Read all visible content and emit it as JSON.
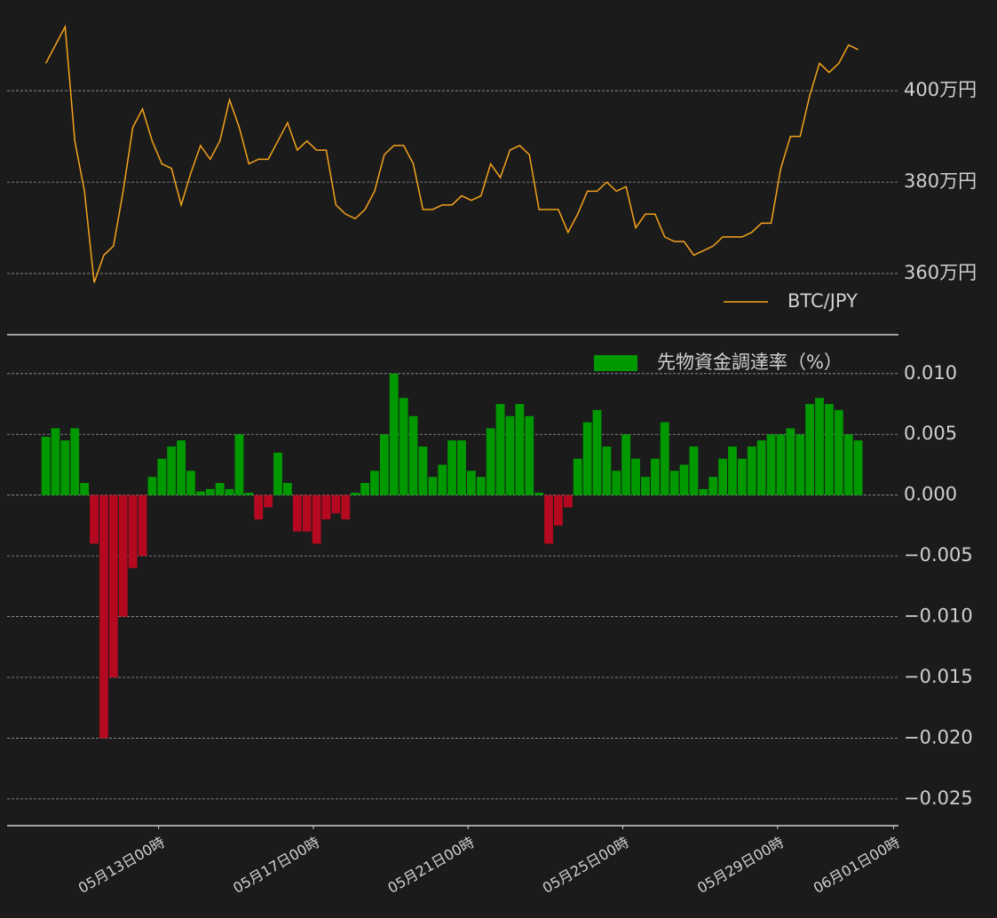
{
  "chart_data": [
    {
      "type": "line",
      "x": [
        "05月10日02時",
        "05月10日08時",
        "05月10日14時",
        "05月10日20時",
        "05月11日02時",
        "05月11日08時",
        "05月11日14時",
        "05月11日20時",
        "05月12日02時",
        "05月12日08時",
        "05月12日14時",
        "05月12日20時",
        "05月13日02時",
        "05月13日08時",
        "05月13日14時",
        "05月13日20時",
        "05月14日02時",
        "05月14日08時",
        "05月14日14時",
        "05月14日20時",
        "05月15日02時",
        "05月15日08時",
        "05月15日14時",
        "05月15日20時",
        "05月16日02時",
        "05月16日08時",
        "05月16日14時",
        "05月16日20時",
        "05月17日02時",
        "05月17日08時",
        "05月17日14時",
        "05月17日20時",
        "05月18日02時",
        "05月18日08時",
        "05月18日14時",
        "05月18日20時",
        "05月19日02時",
        "05月19日08時",
        "05月19日14時",
        "05月19日20時",
        "05月20日02時",
        "05月20日08時",
        "05月20日14時",
        "05月20日20時",
        "05月21日02時",
        "05月21日08時",
        "05月21日14時",
        "05月21日20時",
        "05月22日02時",
        "05月22日08時",
        "05月22日14時",
        "05月22日20時",
        "05月23日02時",
        "05月23日08時",
        "05月23日14時",
        "05月23日20時",
        "05月24日02時",
        "05月24日08時",
        "05月24日14時",
        "05月24日20時",
        "05月25日02時",
        "05月25日08時",
        "05月25日14時",
        "05月25日20時",
        "05月26日02時",
        "05月26日08時",
        "05月26日14時",
        "05月26日20時",
        "05月27日02時",
        "05月27日08時",
        "05月27日14時",
        "05月27日20時",
        "05月28日02時",
        "05月28日08時",
        "05月28日14時",
        "05月28日20時",
        "05月29日02時",
        "05月29日08時",
        "05月29日14時",
        "05月29日20時",
        "05月30日02時",
        "05月30日08時",
        "05月30日14時",
        "05月30日20時",
        "05月31日02時"
      ],
      "series": [
        {
          "name": "BTC/JPY",
          "color": "#f5a31a",
          "values": [
            406,
            410,
            414,
            389,
            378,
            358,
            364,
            366,
            378,
            392,
            396,
            389,
            384,
            383,
            375,
            382,
            388,
            385,
            389,
            398,
            392,
            384,
            385,
            385,
            389,
            393,
            387,
            389,
            387,
            387,
            375,
            373,
            372,
            374,
            378,
            386,
            388,
            388,
            384,
            374,
            374,
            375,
            375,
            377,
            376,
            377,
            384,
            381,
            387,
            388,
            386,
            374,
            374,
            374,
            369,
            373,
            378,
            378,
            380,
            378,
            379,
            370,
            373,
            373,
            368,
            367,
            367,
            364,
            365,
            366,
            368,
            368,
            368,
            369,
            371,
            371,
            383,
            390,
            390,
            399,
            406,
            404,
            406,
            410,
            409
          ]
        }
      ],
      "xlim": [
        "05月09日02時",
        "06月01日03時"
      ],
      "ylim": [
        346.6,
        418.3
      ],
      "yticks": [
        {
          "value": 360,
          "label": "360万円"
        },
        {
          "value": 380,
          "label": "380万円"
        },
        {
          "value": 400,
          "label": "400万円"
        }
      ],
      "grid": true,
      "legend": "lower right"
    },
    {
      "type": "bar",
      "x": [
        "05月10日02時",
        "05月10日08時",
        "05月10日14時",
        "05月10日20時",
        "05月11日02時",
        "05月11日08時",
        "05月11日14時",
        "05月11日20時",
        "05月12日02時",
        "05月12日08時",
        "05月12日14時",
        "05月12日20時",
        "05月13日02時",
        "05月13日08時",
        "05月13日14時",
        "05月13日20時",
        "05月14日02時",
        "05月14日08時",
        "05月14日14時",
        "05月14日20時",
        "05月15日02時",
        "05月15日08時",
        "05月15日14時",
        "05月15日20時",
        "05月16日02時",
        "05月16日08時",
        "05月16日14時",
        "05月16日20時",
        "05月17日02時",
        "05月17日08時",
        "05月17日14時",
        "05月17日20時",
        "05月18日02時",
        "05月18日08時",
        "05月18日14時",
        "05月18日20時",
        "05月19日02時",
        "05月19日08時",
        "05月19日14時",
        "05月19日20時",
        "05月20日02時",
        "05月20日08時",
        "05月20日14時",
        "05月20日20時",
        "05月21日02時",
        "05月21日08時",
        "05月21日14時",
        "05月21日20時",
        "05月22日02時",
        "05月22日08時",
        "05月22日14時",
        "05月22日20時",
        "05月23日02時",
        "05月23日08時",
        "05月23日14時",
        "05月23日20時",
        "05月24日02時",
        "05月24日08時",
        "05月24日14時",
        "05月24日20時",
        "05月25日02時",
        "05月25日08時",
        "05月25日14時",
        "05月25日20時",
        "05月26日02時",
        "05月26日08時",
        "05月26日14時",
        "05月26日20時",
        "05月27日02時",
        "05月27日08時",
        "05月27日14時",
        "05月27日20時",
        "05月28日02時",
        "05月28日08時",
        "05月28日14時",
        "05月28日20時",
        "05月29日02時",
        "05月29日08時",
        "05月29日14時",
        "05月29日20時",
        "05月30日02時",
        "05月30日08時",
        "05月30日14時",
        "05月30日20時",
        "05月31日02時"
      ],
      "series": [
        {
          "name": "先物資金調達率（%）",
          "color": "#009a00",
          "negative_color": "#b5091f",
          "values": [
            0.0048,
            0.0055,
            0.0045,
            0.0055,
            0.001,
            -0.004,
            -0.02,
            -0.015,
            -0.01,
            -0.006,
            -0.005,
            0.0015,
            0.003,
            0.004,
            0.0045,
            0.002,
            0.0003,
            0.0005,
            0.001,
            0.0005,
            0.005,
            0.0002,
            -0.002,
            -0.001,
            0.0035,
            0.001,
            -0.003,
            -0.003,
            -0.004,
            -0.002,
            -0.0015,
            -0.002,
            0.0002,
            0.001,
            0.002,
            0.005,
            0.01,
            0.008,
            0.0065,
            0.004,
            0.0015,
            0.0025,
            0.0045,
            0.0045,
            0.002,
            0.0015,
            0.0055,
            0.0075,
            0.0065,
            0.0075,
            0.0065,
            0.0002,
            -0.004,
            -0.0025,
            -0.001,
            0.003,
            0.006,
            0.007,
            0.004,
            0.002,
            0.005,
            0.003,
            0.0015,
            0.003,
            0.006,
            0.002,
            0.0025,
            0.004,
            0.0005,
            0.0015,
            0.003,
            0.004,
            0.003,
            0.004,
            0.0045,
            0.005,
            0.005,
            0.0055,
            0.005,
            0.0075,
            0.008,
            0.0075,
            0.007,
            0.005,
            0.0045
          ]
        }
      ],
      "xlim": [
        "05月09日02時",
        "06月01日03時"
      ],
      "xticks": [
        "05月13日00時",
        "05月17日00時",
        "05月21日00時",
        "05月25日00時",
        "05月29日00時",
        "06月01日00時"
      ],
      "ylim": [
        -0.0272,
        0.0132
      ],
      "yticks": [
        {
          "value": -0.025,
          "label": "−0.025"
        },
        {
          "value": -0.02,
          "label": "−0.020"
        },
        {
          "value": -0.015,
          "label": "−0.015"
        },
        {
          "value": -0.01,
          "label": "−0.010"
        },
        {
          "value": -0.005,
          "label": "−0.005"
        },
        {
          "value": 0,
          "label": "0.000"
        },
        {
          "value": 0.005,
          "label": "0.005"
        },
        {
          "value": 0.01,
          "label": "0.010"
        }
      ],
      "grid": true,
      "legend": "upper right"
    }
  ]
}
